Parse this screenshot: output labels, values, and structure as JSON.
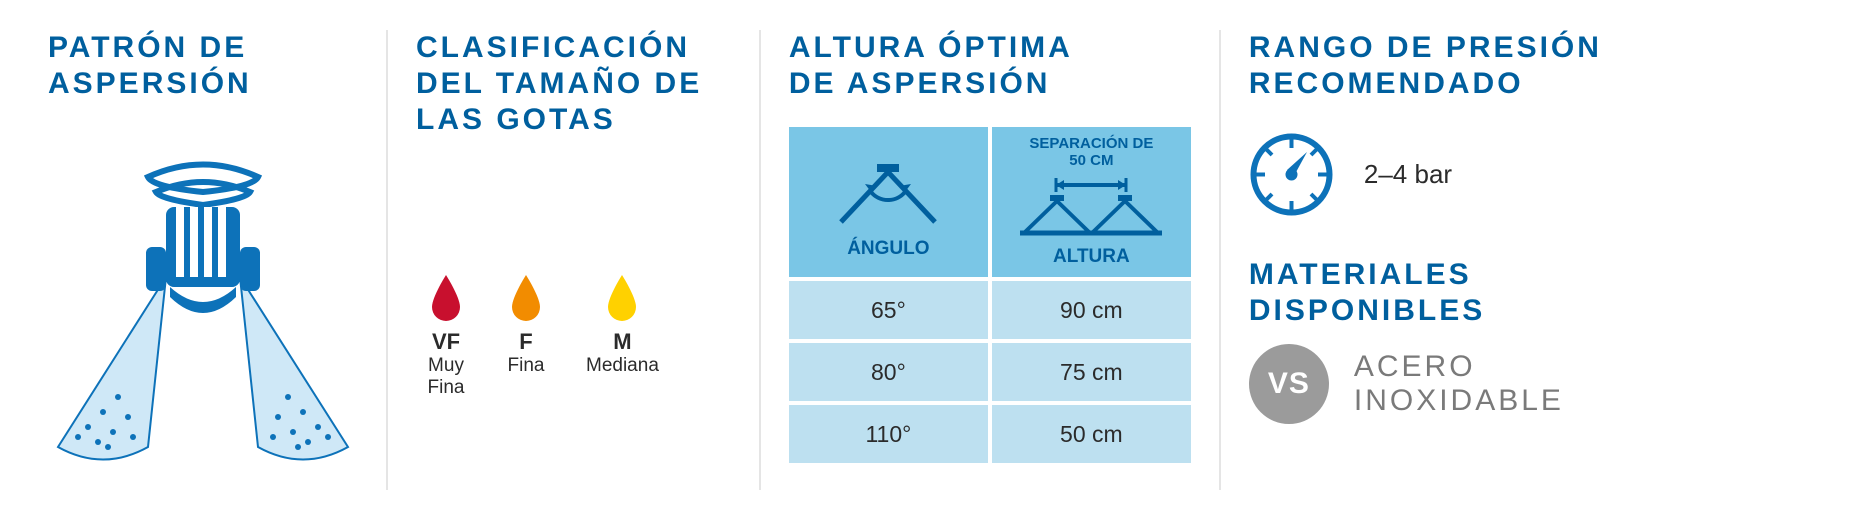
{
  "colors": {
    "brand_blue": "#0d72b9",
    "title_blue": "#005f9e",
    "light_blue_head": "#7ac6e6",
    "light_blue_body": "#bde0f0",
    "divider": "#e5e5e5",
    "text_dark": "#2b2b2b",
    "grey_badge": "#9b9b9b",
    "grey_text": "#7a7a7a",
    "drop_vf": "#c8102e",
    "drop_f": "#f28c00",
    "drop_m": "#ffd100"
  },
  "panel1": {
    "title_line1": "PATRÓN DE",
    "title_line2": "ASPERSIÓN",
    "icon": "spray-nozzle-pattern"
  },
  "panel2": {
    "title_line1": "CLASIFICACIÓN",
    "title_line2": "DEL TAMAÑO DE",
    "title_line3": "LAS GOTAS",
    "drops": [
      {
        "code": "VF",
        "label": "Muy\nFina",
        "color": "#c8102e"
      },
      {
        "code": "F",
        "label": "Fina",
        "color": "#f28c00"
      },
      {
        "code": "M",
        "label": "Mediana",
        "color": "#ffd100"
      }
    ]
  },
  "panel3": {
    "title_line1": "ALTURA ÓPTIMA",
    "title_line2": "DE ASPERSIÓN",
    "separation_label": "SEPARACIÓN DE\n50 CM",
    "col1_header": "ÁNGULO",
    "col2_header": "ALTURA",
    "rows": [
      {
        "angle": "65°",
        "height": "90 cm"
      },
      {
        "angle": "80°",
        "height": "75 cm"
      },
      {
        "angle": "110°",
        "height": "50 cm"
      }
    ]
  },
  "panel4": {
    "pressure_title_line1": "RANGO DE PRESIÓN",
    "pressure_title_line2": "RECOMENDADO",
    "pressure_value": "2–4 bar",
    "materials_title_line1": "MATERIALES",
    "materials_title_line2": "DISPONIBLES",
    "material_badge": "VS",
    "material_name_line1": "ACERO",
    "material_name_line2": "INOXIDABLE"
  }
}
